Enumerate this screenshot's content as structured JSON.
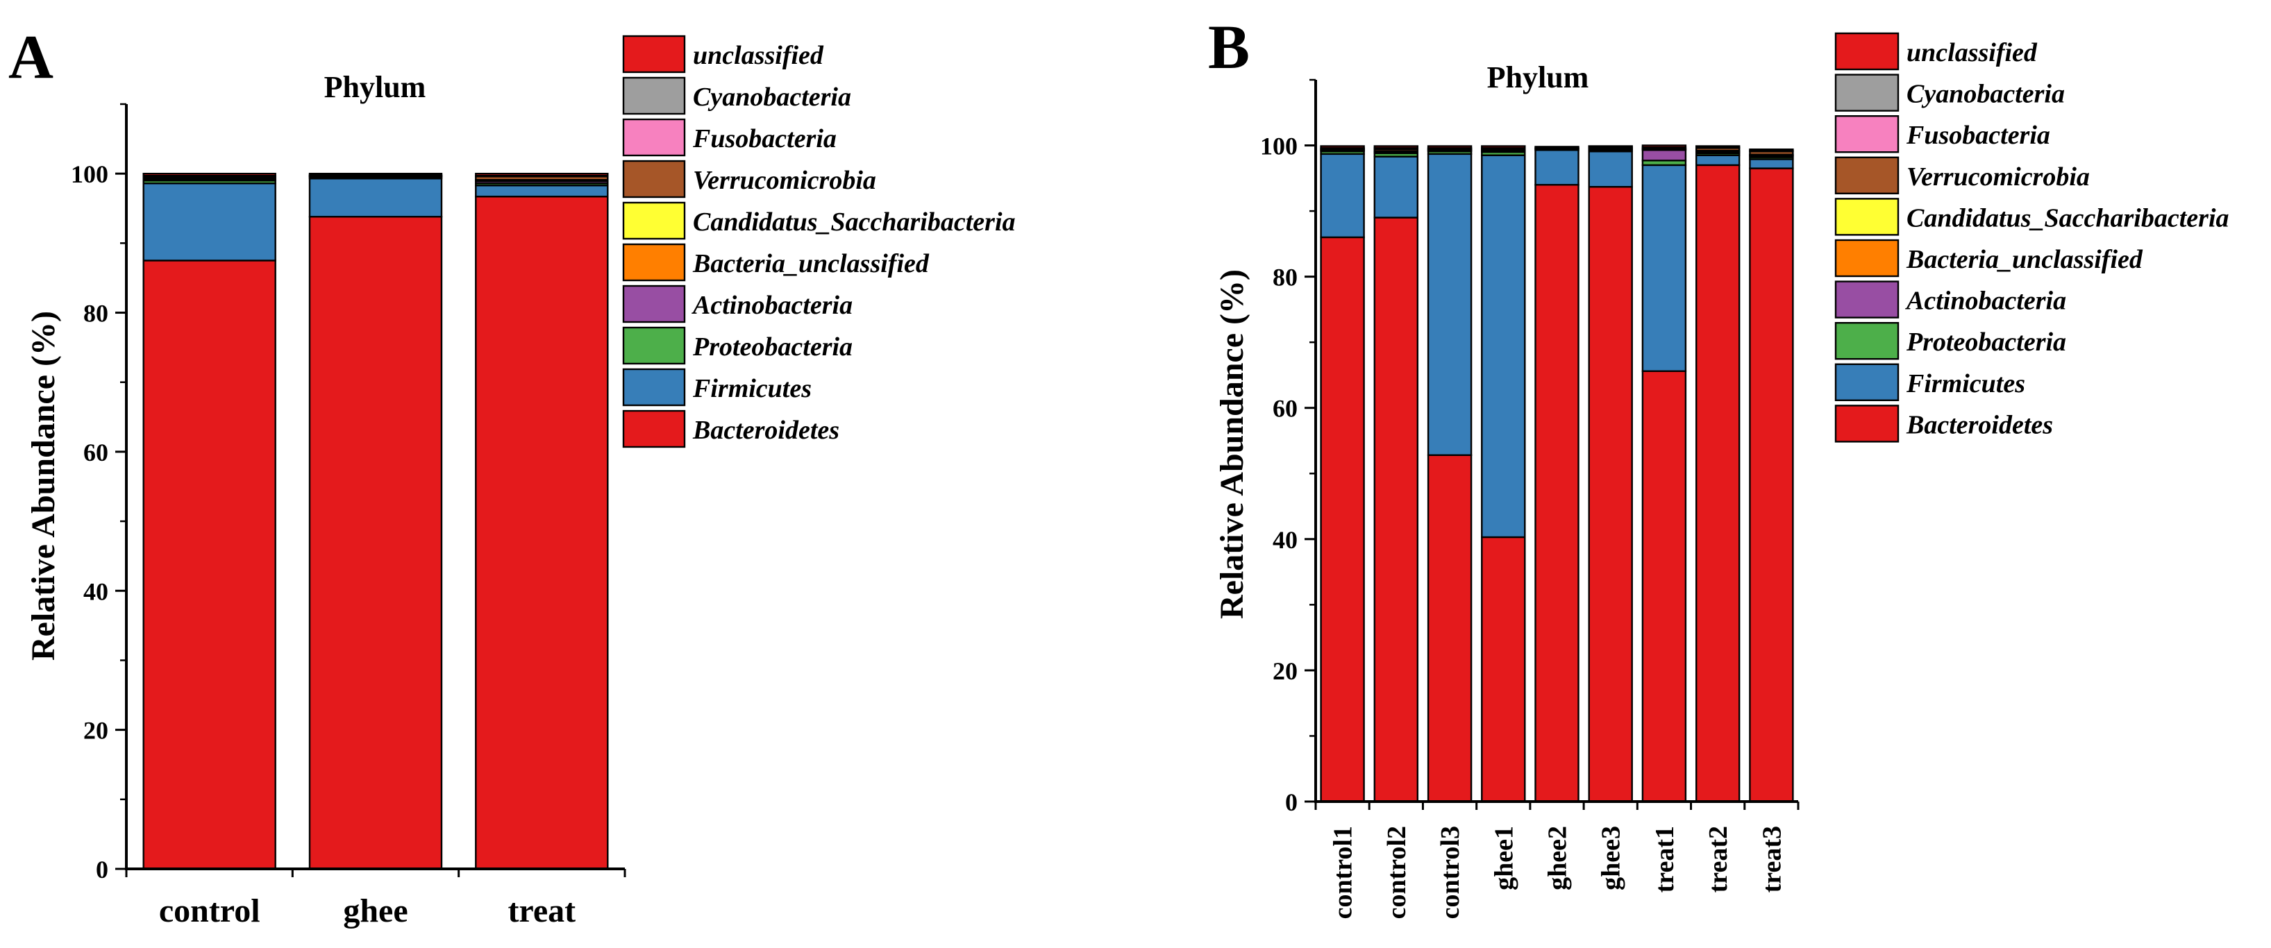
{
  "legend_items": [
    {
      "label": "unclassified",
      "color": "#e41a1c"
    },
    {
      "label": "Cyanobacteria",
      "color": "#9e9e9e"
    },
    {
      "label": "Fusobacteria",
      "color": "#f781bf"
    },
    {
      "label": "Verrucomicrobia",
      "color": "#a65628"
    },
    {
      "label": "Candidatus_Saccharibacteria",
      "color": "#ffff33"
    },
    {
      "label": "Bacteria_unclassified",
      "color": "#ff7f00"
    },
    {
      "label": "Actinobacteria",
      "color": "#984ea3"
    },
    {
      "label": "Proteobacteria",
      "color": "#4daf4a"
    },
    {
      "label": "Firmicutes",
      "color": "#377eb8"
    },
    {
      "label": "Bacteroidetes",
      "color": "#e41a1c"
    }
  ],
  "chart_data": [
    {
      "panel": "A",
      "type": "bar",
      "stacked": true,
      "title": "Phylum",
      "xlabel": "",
      "ylabel": "Relative Abundance (%)",
      "ylim": [
        0,
        110
      ],
      "yticks": [
        0,
        20,
        40,
        60,
        80,
        100
      ],
      "categories": [
        "control",
        "ghee",
        "treat"
      ],
      "series": [
        {
          "name": "Bacteroidetes",
          "values": [
            87.5,
            93.8,
            96.7
          ]
        },
        {
          "name": "Firmicutes",
          "values": [
            11.1,
            5.5,
            1.6
          ]
        },
        {
          "name": "Proteobacteria",
          "values": [
            0.4,
            0.2,
            0.3
          ]
        },
        {
          "name": "Actinobacteria",
          "values": [
            0.1,
            0.1,
            0.3
          ]
        },
        {
          "name": "Bacteria_unclassified",
          "values": [
            0.1,
            0.1,
            0.1
          ]
        },
        {
          "name": "Candidatus_Saccharibacteria",
          "values": [
            0.1,
            0.0,
            0.1
          ]
        },
        {
          "name": "Verrucomicrobia",
          "values": [
            0.2,
            0.1,
            0.5
          ]
        },
        {
          "name": "Fusobacteria",
          "values": [
            0.1,
            0.0,
            0.1
          ]
        },
        {
          "name": "Cyanobacteria",
          "values": [
            0.1,
            0.0,
            0.0
          ]
        },
        {
          "name": "unclassified",
          "values": [
            0.3,
            0.2,
            0.3
          ]
        }
      ]
    },
    {
      "panel": "B",
      "type": "bar",
      "stacked": true,
      "title": "Phylum",
      "xlabel": "",
      "ylabel": "Relative Abundance (%)",
      "ylim": [
        0,
        110
      ],
      "yticks": [
        0,
        20,
        40,
        60,
        80,
        100
      ],
      "categories": [
        "control1",
        "control2",
        "control3",
        "ghee1",
        "ghee2",
        "ghee3",
        "treat1",
        "treat2",
        "treat3"
      ],
      "series": [
        {
          "name": "Bacteroidetes",
          "values": [
            86.0,
            89.0,
            52.8,
            40.3,
            94.0,
            93.7,
            65.6,
            97.0,
            96.5
          ]
        },
        {
          "name": "Firmicutes",
          "values": [
            12.7,
            9.3,
            45.9,
            58.2,
            5.3,
            5.4,
            31.4,
            1.5,
            1.4
          ]
        },
        {
          "name": "Proteobacteria",
          "values": [
            0.4,
            0.5,
            0.4,
            0.5,
            0.2,
            0.2,
            0.7,
            0.3,
            0.3
          ]
        },
        {
          "name": "Actinobacteria",
          "values": [
            0.1,
            0.1,
            0.1,
            0.1,
            0.0,
            0.1,
            1.6,
            0.2,
            0.2
          ]
        },
        {
          "name": "Bacteria_unclassified",
          "values": [
            0.1,
            0.1,
            0.1,
            0.1,
            0.0,
            0.1,
            0.1,
            0.1,
            0.1
          ]
        },
        {
          "name": "Candidatus_Saccharibacteria",
          "values": [
            0.1,
            0.1,
            0.1,
            0.1,
            0.0,
            0.0,
            0.1,
            0.1,
            0.1
          ]
        },
        {
          "name": "Verrucomicrobia",
          "values": [
            0.1,
            0.3,
            0.1,
            0.2,
            0.1,
            0.1,
            0.2,
            0.4,
            0.5
          ]
        },
        {
          "name": "Fusobacteria",
          "values": [
            0.0,
            0.0,
            0.0,
            0.0,
            0.0,
            0.0,
            0.0,
            0.0,
            0.1
          ]
        },
        {
          "name": "Cyanobacteria",
          "values": [
            0.1,
            0.2,
            0.1,
            0.1,
            0.0,
            0.1,
            0.0,
            0.1,
            0.0
          ]
        },
        {
          "name": "unclassified",
          "values": [
            0.3,
            0.3,
            0.3,
            0.3,
            0.2,
            0.2,
            0.3,
            0.2,
            0.2
          ]
        }
      ]
    }
  ]
}
